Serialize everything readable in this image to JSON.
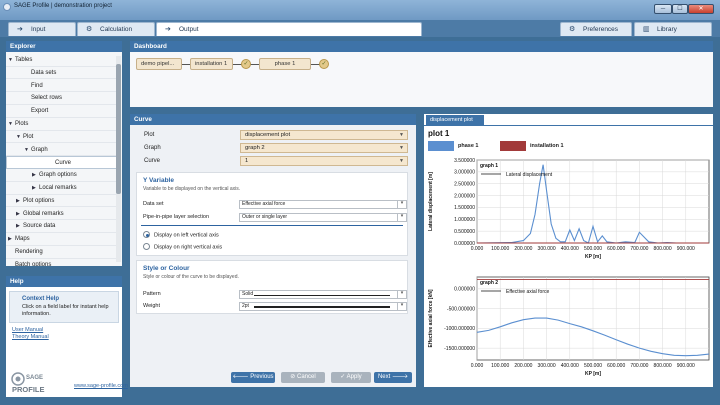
{
  "window": {
    "title": "SAGE Profile | demonstration project",
    "minimize": "─",
    "maximize": "☐",
    "close": "✕"
  },
  "tabs": [
    {
      "label": "Input",
      "icon": "input-icon"
    },
    {
      "label": "Calculation",
      "icon": "gear-icon"
    },
    {
      "label": "Output",
      "icon": "output-icon"
    }
  ],
  "toolbar": {
    "preferences": "Preferences",
    "library": "Library"
  },
  "explorer": {
    "title": "Explorer",
    "items": [
      {
        "label": "Tables",
        "level": 0,
        "arrow": "▼"
      },
      {
        "label": "Data sets",
        "level": 2,
        "arrow": ""
      },
      {
        "label": "Find",
        "level": 2,
        "arrow": ""
      },
      {
        "label": "Select rows",
        "level": 2,
        "arrow": ""
      },
      {
        "label": "Export",
        "level": 2,
        "arrow": ""
      },
      {
        "label": "Plots",
        "level": 0,
        "arrow": "▼"
      },
      {
        "label": "Plot",
        "level": 1,
        "arrow": "▼"
      },
      {
        "label": "Graph",
        "level": 2,
        "arrow": "▼"
      },
      {
        "label": "Curve",
        "level": 3,
        "arrow": ""
      },
      {
        "label": "Graph options",
        "level": 3,
        "arrow": "▶"
      },
      {
        "label": "Local remarks",
        "level": 3,
        "arrow": "▶"
      },
      {
        "label": "Plot options",
        "level": 1,
        "arrow": "▶"
      },
      {
        "label": "Global remarks",
        "level": 1,
        "arrow": "▶"
      },
      {
        "label": "Source data",
        "level": 1,
        "arrow": "▶"
      },
      {
        "label": "Maps",
        "level": 0,
        "arrow": "▶"
      },
      {
        "label": "Rendering",
        "level": 0,
        "arrow": ""
      },
      {
        "label": "Batch options",
        "level": 0,
        "arrow": ""
      }
    ]
  },
  "help": {
    "title": "Help",
    "context_title": "Context Help",
    "context_text": "Click on a field label for instant help information.",
    "user_manual": "User Manual",
    "theory_manual": "Theory Manual",
    "website": "www.sage-profile.com",
    "logo_top": "SAGE",
    "logo_bottom": "PROFILE"
  },
  "dashboard": {
    "title": "Dashboard",
    "nodes": [
      "demo pipel...",
      "installation 1",
      "phase 1"
    ]
  },
  "curve": {
    "title": "Curve",
    "plot_label": "Plot",
    "plot_value": "displacement plot",
    "graph_label": "Graph",
    "graph_value": "graph 2",
    "curve_label": "Curve",
    "curve_value": "1",
    "yvar_title": "Y Variable",
    "yvar_desc": "Variable to be displayed on the vertical axis.",
    "dataset_label": "Data set",
    "dataset_value": "Effective axial force",
    "pip_label": "Pipe-in-pipe layer selection",
    "pip_value": "Outer or single layer",
    "radio_left": "Display on left vertical axis",
    "radio_right": "Display on right vertical axis",
    "style_title": "Style or Colour",
    "style_desc": "Style or colour of the curve to be displayed.",
    "pattern_label": "Pattern",
    "pattern_value": "Solid",
    "weight_label": "Weight",
    "weight_value": "2pt"
  },
  "nav": {
    "previous": "Previous",
    "cancel": "Cancel",
    "apply": "Apply",
    "next": "Next"
  },
  "plotpanel": {
    "tab": "displacement plot",
    "plot_title": "plot 1",
    "legend": [
      {
        "name": "phase 1",
        "color": "#5b8fd0"
      },
      {
        "name": "installation 1",
        "color": "#a23a3a"
      }
    ]
  },
  "chart_data": [
    {
      "type": "line",
      "title": "graph 1",
      "ylabel": "Lateral displacement [m]",
      "xlabel": "KP [m]",
      "xlim": [
        0,
        1000
      ],
      "ylim": [
        0,
        3.5
      ],
      "xticks": [
        "0.000",
        "100.000",
        "200.000",
        "300.000",
        "400.000",
        "500.000",
        "600.000",
        "700.000",
        "800.000",
        "900.000"
      ],
      "yticks": [
        "3.500000",
        "3.000000",
        "2.500000",
        "2.000000",
        "1.500000",
        "1.000000",
        "0.500000",
        "0.000000"
      ],
      "series": [
        {
          "name": "Lateral displacement",
          "color": "#5b8fd0",
          "x": [
            0,
            150,
            200,
            230,
            250,
            270,
            285,
            300,
            320,
            340,
            360,
            380,
            400,
            420,
            440,
            460,
            480,
            500,
            520,
            540,
            560,
            600,
            640,
            680,
            700,
            740,
            780,
            820,
            860,
            900,
            1000
          ],
          "y": [
            0,
            0.02,
            0.1,
            0.4,
            1.2,
            2.5,
            3.3,
            2.2,
            0.8,
            0.2,
            0.05,
            0.05,
            0.55,
            0.1,
            0.6,
            0.1,
            0.0,
            0.7,
            0.05,
            0.3,
            0.05,
            0.0,
            0.05,
            0.02,
            0.45,
            0.05,
            0.0,
            0.02,
            0.0,
            0.0,
            0.0
          ]
        },
        {
          "name": "",
          "color": "#a23a3a",
          "x": [
            0,
            1000
          ],
          "y": [
            0.0,
            0.0
          ]
        }
      ]
    },
    {
      "type": "line",
      "title": "graph 2",
      "ylabel": "Effective axial force [kN]",
      "xlabel": "KP [m]",
      "xlim": [
        0,
        1000
      ],
      "ylim": [
        -1800000,
        300000
      ],
      "xticks": [
        "0.000",
        "100.000",
        "200.000",
        "300.000",
        "400.000",
        "500.000",
        "600.000",
        "700.000",
        "800.000",
        "900.000"
      ],
      "yticks": [
        "0.000000",
        "-500.000000",
        "-1000.000000",
        "-1500.000000"
      ],
      "series": [
        {
          "name": "Effective axial force",
          "color": "#5b8fd0",
          "x": [
            0,
            50,
            100,
            150,
            200,
            250,
            300,
            350,
            400,
            450,
            500,
            550,
            600,
            650,
            700,
            750,
            800,
            850,
            900,
            950,
            1000
          ],
          "y": [
            -1100000,
            -1050000,
            -960000,
            -860000,
            -780000,
            -740000,
            -740000,
            -790000,
            -880000,
            -960000,
            -1060000,
            -1170000,
            -1290000,
            -1400000,
            -1500000,
            -1580000,
            -1640000,
            -1680000,
            -1690000,
            -1680000,
            -1650000
          ]
        },
        {
          "name": "",
          "color": "#a23a3a",
          "x": [
            0,
            1000
          ],
          "y": [
            240000,
            240000
          ]
        }
      ]
    }
  ]
}
